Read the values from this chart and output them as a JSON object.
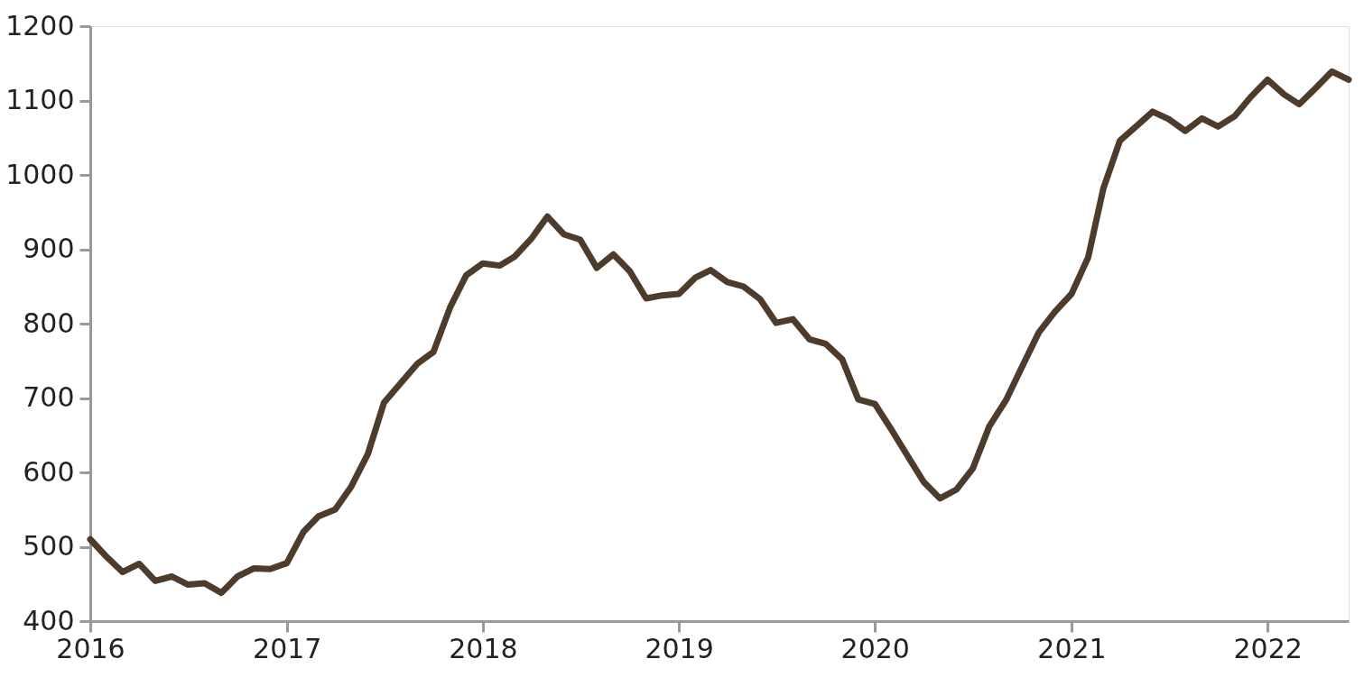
{
  "chart_data": {
    "type": "line",
    "x": [
      "2016-01",
      "2016-02",
      "2016-03",
      "2016-04",
      "2016-05",
      "2016-06",
      "2016-07",
      "2016-08",
      "2016-09",
      "2016-10",
      "2016-11",
      "2016-12",
      "2017-01",
      "2017-02",
      "2017-03",
      "2017-04",
      "2017-05",
      "2017-06",
      "2017-07",
      "2017-08",
      "2017-09",
      "2017-10",
      "2017-11",
      "2017-12",
      "2018-01",
      "2018-02",
      "2018-03",
      "2018-04",
      "2018-05",
      "2018-06",
      "2018-07",
      "2018-08",
      "2018-09",
      "2018-10",
      "2018-11",
      "2018-12",
      "2019-01",
      "2019-02",
      "2019-03",
      "2019-04",
      "2019-05",
      "2019-06",
      "2019-07",
      "2019-08",
      "2019-09",
      "2019-10",
      "2019-11",
      "2019-12",
      "2020-01",
      "2020-02",
      "2020-03",
      "2020-04",
      "2020-05",
      "2020-06",
      "2020-07",
      "2020-08",
      "2020-09",
      "2020-10",
      "2020-11",
      "2020-12",
      "2021-01",
      "2021-02",
      "2021-03",
      "2021-04",
      "2021-05",
      "2021-06",
      "2021-07",
      "2021-08",
      "2021-09",
      "2021-10",
      "2021-11",
      "2021-12",
      "2022-01",
      "2022-02",
      "2022-03",
      "2022-04",
      "2022-05",
      "2022-06"
    ],
    "series": [
      {
        "color": "#4d3b2b",
        "values": [
          510,
          486,
          466,
          477,
          454,
          460,
          449,
          451,
          438,
          460,
          471,
          470,
          478,
          520,
          541,
          550,
          581,
          625,
          694,
          720,
          746,
          762,
          822,
          865,
          881,
          878,
          890,
          914,
          944,
          920,
          913,
          875,
          893,
          871,
          834,
          838,
          840,
          862,
          872,
          856,
          850,
          833,
          801,
          806,
          779,
          773,
          752,
          698,
          692,
          657,
          623,
          587,
          565,
          577,
          605,
          662,
          697,
          742,
          788,
          816,
          840,
          889,
          981,
          1046,
          1065,
          1085,
          1075,
          1059,
          1076,
          1065,
          1079,
          1105,
          1128,
          1108,
          1095,
          1117,
          1139,
          1128
        ]
      }
    ],
    "xlim": [
      "2016-01",
      "2022-06"
    ],
    "xticks": [
      {
        "value": "2016",
        "label": "2016"
      },
      {
        "value": "2017",
        "label": "2017"
      },
      {
        "value": "2018",
        "label": "2018"
      },
      {
        "value": "2019",
        "label": "2019"
      },
      {
        "value": "2020",
        "label": "2020"
      },
      {
        "value": "2021",
        "label": "2021"
      },
      {
        "value": "2022",
        "label": "2022"
      }
    ],
    "ylim": [
      400,
      1200
    ],
    "yticks": [
      400,
      500,
      600,
      700,
      800,
      900,
      1000,
      1100,
      1200
    ],
    "grid": false,
    "marker": "none",
    "line_style": "solid"
  }
}
